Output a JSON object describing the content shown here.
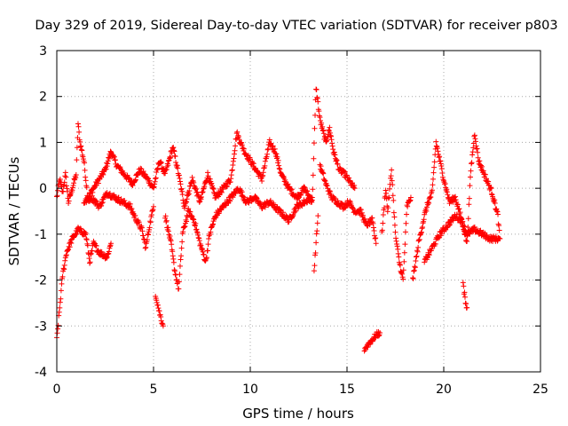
{
  "chart_data": {
    "type": "scatter",
    "title": "Day 329 of 2019, Sidereal Day-to-day VTEC variation (SDTVAR) for receiver p803",
    "xlabel": "GPS time / hours",
    "ylabel": "SDTVAR / TECUs",
    "xlim": [
      0,
      25
    ],
    "ylim": [
      -4,
      3
    ],
    "xticks": [
      "0",
      "5",
      "10",
      "15",
      "20",
      "25"
    ],
    "yticks": [
      "3",
      "2",
      "1",
      "0",
      "-1",
      "-2",
      "-3",
      "-4"
    ],
    "grid": true,
    "marker": "+",
    "color": "#ff0000",
    "series": [
      {
        "name": "SDTVAR",
        "tracks": [
          [
            [
              0.0,
              -0.2
            ],
            [
              0.15,
              0.2
            ],
            [
              0.3,
              -0.1
            ],
            [
              0.45,
              0.3
            ],
            [
              0.6,
              -0.3
            ],
            [
              0.8,
              0.0
            ],
            [
              1.0,
              0.3
            ],
            [
              1.1,
              1.4
            ],
            [
              1.2,
              1.0
            ],
            [
              1.4,
              0.6
            ],
            [
              1.6,
              -0.2
            ],
            [
              1.9,
              0.0
            ],
            [
              2.2,
              0.2
            ],
            [
              2.5,
              0.4
            ],
            [
              2.8,
              0.8
            ],
            [
              3.1,
              0.5
            ],
            [
              3.5,
              0.3
            ],
            [
              3.9,
              0.1
            ],
            [
              4.3,
              0.4
            ],
            [
              4.7,
              0.2
            ],
            [
              5.0,
              0.0
            ],
            [
              5.3,
              0.6
            ],
            [
              5.6,
              0.3
            ],
            [
              6.0,
              0.9
            ],
            [
              6.3,
              0.3
            ],
            [
              6.6,
              -0.4
            ],
            [
              7.0,
              0.2
            ],
            [
              7.4,
              -0.3
            ],
            [
              7.8,
              0.3
            ],
            [
              8.2,
              -0.2
            ],
            [
              8.6,
              0.0
            ],
            [
              9.0,
              0.2
            ],
            [
              9.3,
              1.2
            ],
            [
              9.7,
              0.8
            ],
            [
              10.0,
              0.6
            ],
            [
              10.3,
              0.4
            ],
            [
              10.6,
              0.2
            ],
            [
              11.0,
              1.0
            ],
            [
              11.3,
              0.8
            ],
            [
              11.6,
              0.3
            ],
            [
              12.0,
              0.0
            ],
            [
              12.4,
              -0.2
            ],
            [
              12.8,
              0.0
            ],
            [
              13.2,
              -0.3
            ],
            [
              13.4,
              2.2
            ],
            [
              13.6,
              1.5
            ],
            [
              13.9,
              1.0
            ],
            [
              14.1,
              1.3
            ],
            [
              14.3,
              0.8
            ],
            [
              14.6,
              0.4
            ],
            [
              14.9,
              0.3
            ],
            [
              15.2,
              0.1
            ],
            [
              15.4,
              0.0
            ]
          ],
          [
            [
              0.0,
              -3.3
            ],
            [
              0.15,
              -2.6
            ],
            [
              0.3,
              -1.9
            ],
            [
              0.5,
              -1.4
            ],
            [
              0.8,
              -1.1
            ],
            [
              1.1,
              -0.9
            ],
            [
              1.5,
              -1.0
            ],
            [
              1.7,
              -1.6
            ],
            [
              1.9,
              -1.2
            ],
            [
              2.2,
              -1.4
            ],
            [
              2.6,
              -1.5
            ],
            [
              2.8,
              -1.2
            ]
          ],
          [
            [
              1.4,
              -0.3
            ],
            [
              1.8,
              -0.2
            ],
            [
              2.2,
              -0.4
            ],
            [
              2.6,
              -0.1
            ],
            [
              3.0,
              -0.2
            ],
            [
              3.4,
              -0.3
            ],
            [
              3.8,
              -0.4
            ],
            [
              4.0,
              -0.6
            ],
            [
              4.4,
              -0.9
            ],
            [
              4.6,
              -1.3
            ],
            [
              4.8,
              -0.8
            ],
            [
              5.0,
              -0.4
            ]
          ],
          [
            [
              5.1,
              -2.3
            ],
            [
              5.3,
              -2.7
            ],
            [
              5.5,
              -3.0
            ]
          ],
          [
            [
              5.6,
              -0.6
            ],
            [
              5.9,
              -1.2
            ],
            [
              6.1,
              -1.8
            ],
            [
              6.3,
              -2.2
            ],
            [
              6.5,
              -1.0
            ],
            [
              6.8,
              -0.5
            ],
            [
              7.1,
              -0.7
            ],
            [
              7.4,
              -1.2
            ],
            [
              7.7,
              -1.6
            ],
            [
              7.9,
              -1.0
            ],
            [
              8.2,
              -0.6
            ],
            [
              8.6,
              -0.4
            ],
            [
              9.0,
              -0.2
            ],
            [
              9.4,
              0.0
            ],
            [
              9.8,
              -0.3
            ],
            [
              10.2,
              -0.2
            ],
            [
              10.6,
              -0.4
            ],
            [
              11.0,
              -0.3
            ],
            [
              11.5,
              -0.5
            ],
            [
              12.0,
              -0.7
            ],
            [
              12.4,
              -0.4
            ],
            [
              12.8,
              -0.3
            ],
            [
              13.2,
              -0.2
            ]
          ],
          [
            [
              13.3,
              -1.8
            ],
            [
              13.4,
              -1.2
            ],
            [
              13.5,
              -0.6
            ]
          ],
          [
            [
              13.6,
              0.5
            ],
            [
              13.9,
              0.1
            ],
            [
              14.2,
              -0.2
            ],
            [
              14.5,
              -0.3
            ],
            [
              14.8,
              -0.4
            ],
            [
              15.1,
              -0.3
            ],
            [
              15.4,
              -0.5
            ],
            [
              15.7,
              -0.5
            ],
            [
              16.0,
              -0.8
            ],
            [
              16.3,
              -0.7
            ],
            [
              16.5,
              -1.2
            ]
          ],
          [
            [
              15.9,
              -3.5
            ],
            [
              16.1,
              -3.4
            ],
            [
              16.3,
              -3.3
            ],
            [
              16.5,
              -3.2
            ],
            [
              16.7,
              -3.15
            ]
          ],
          [
            [
              16.8,
              -1.0
            ],
            [
              17.0,
              0.0
            ],
            [
              17.1,
              -0.5
            ],
            [
              17.3,
              0.4
            ],
            [
              17.5,
              -1.0
            ],
            [
              17.7,
              -1.6
            ],
            [
              17.9,
              -2.0
            ],
            [
              18.1,
              -0.4
            ],
            [
              18.3,
              -0.2
            ]
          ],
          [
            [
              18.4,
              -2.0
            ],
            [
              18.7,
              -1.2
            ],
            [
              19.0,
              -0.6
            ],
            [
              19.2,
              -0.3
            ],
            [
              19.4,
              -0.1
            ],
            [
              19.6,
              1.0
            ],
            [
              19.8,
              0.6
            ],
            [
              20.0,
              0.2
            ],
            [
              20.3,
              -0.3
            ],
            [
              20.6,
              -0.2
            ],
            [
              21.0,
              -0.8
            ],
            [
              21.2,
              -1.2
            ],
            [
              21.4,
              0.4
            ],
            [
              21.6,
              1.2
            ],
            [
              21.8,
              0.6
            ],
            [
              22.0,
              0.4
            ],
            [
              22.2,
              0.2
            ],
            [
              22.5,
              -0.1
            ],
            [
              22.8,
              -0.6
            ],
            [
              22.9,
              -1.1
            ]
          ],
          [
            [
              19.0,
              -1.6
            ],
            [
              19.4,
              -1.3
            ],
            [
              19.8,
              -1.0
            ],
            [
              20.2,
              -0.8
            ],
            [
              20.6,
              -0.6
            ],
            [
              20.9,
              -0.7
            ],
            [
              21.2,
              -1.0
            ],
            [
              21.6,
              -0.9
            ],
            [
              22.0,
              -1.0
            ],
            [
              22.4,
              -1.1
            ],
            [
              22.9,
              -1.1
            ]
          ],
          [
            [
              21.0,
              -2.1
            ],
            [
              21.1,
              -2.4
            ],
            [
              21.2,
              -2.6
            ]
          ]
        ]
      }
    ]
  }
}
